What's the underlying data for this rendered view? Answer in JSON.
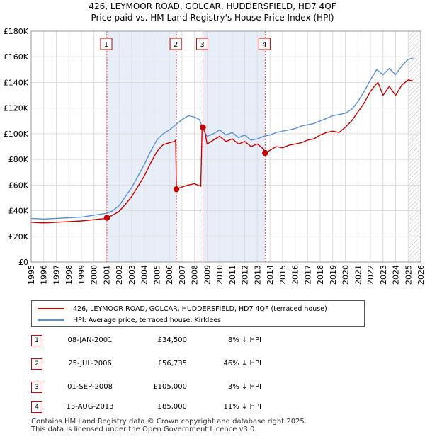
{
  "chart_data": {
    "type": "line",
    "title": "426, LEYMOOR ROAD, GOLCAR, HUDDERSFIELD, HD7 4QF",
    "subtitle": "Price paid vs. HM Land Registry's House Price Index (HPI)",
    "xlabel": "",
    "ylabel": "",
    "xlim": [
      1995,
      2026
    ],
    "ylim": [
      0,
      180000
    ],
    "x_ticks": [
      1995,
      1996,
      1997,
      1998,
      1999,
      2000,
      2001,
      2002,
      2003,
      2004,
      2005,
      2006,
      2007,
      2008,
      2009,
      2010,
      2011,
      2012,
      2013,
      2014,
      2015,
      2016,
      2017,
      2018,
      2019,
      2020,
      2021,
      2022,
      2023,
      2024,
      2025,
      2026
    ],
    "y_ticks": [
      0,
      20000,
      40000,
      60000,
      80000,
      100000,
      120000,
      140000,
      160000,
      180000
    ],
    "y_tick_labels": [
      "£0",
      "£20K",
      "£40K",
      "£60K",
      "£80K",
      "£100K",
      "£120K",
      "£140K",
      "£160K",
      "£180K"
    ],
    "grid": true,
    "colors": {
      "property": "#cc0000",
      "hpi": "#5b8fd9",
      "shade": "#e8eef8",
      "vline": "#e05050",
      "grid": "#dddddd"
    },
    "series": [
      {
        "name": "426, LEYMOOR ROAD, GOLCAR, HUDDERSFIELD, HD7 4QF (terraced house)",
        "color": "#cc0000",
        "x": [
          1995.0,
          1996.0,
          1997.0,
          1998.0,
          1999.0,
          2000.0,
          2001.0,
          2001.03,
          2001.5,
          2002.0,
          2002.5,
          2003.0,
          2003.5,
          2004.0,
          2004.5,
          2005.0,
          2005.5,
          2006.0,
          2006.4,
          2006.5,
          2006.56,
          2006.57,
          2007.0,
          2007.5,
          2008.0,
          2008.5,
          2008.6,
          2008.67,
          2008.8,
          2009.0,
          2009.5,
          2010.0,
          2010.5,
          2011.0,
          2011.5,
          2012.0,
          2012.5,
          2013.0,
          2013.5,
          2013.62,
          2014.0,
          2014.5,
          2015.0,
          2015.5,
          2016.0,
          2016.5,
          2017.0,
          2017.5,
          2018.0,
          2018.5,
          2019.0,
          2019.5,
          2020.0,
          2020.5,
          2021.0,
          2021.5,
          2022.0,
          2022.3,
          2022.6,
          2023.0,
          2023.5,
          2024.0,
          2024.5,
          2025.0,
          2025.4
        ],
        "values": [
          31000,
          30500,
          31000,
          31500,
          32000,
          33000,
          34000,
          34500,
          36500,
          39500,
          45000,
          51000,
          59000,
          67000,
          77000,
          86000,
          91500,
          93000,
          94000,
          95000,
          56735,
          57000,
          58500,
          60000,
          61000,
          59000,
          104000,
          105000,
          103000,
          92000,
          95000,
          98000,
          94000,
          96000,
          92000,
          94000,
          90000,
          92000,
          88000,
          85000,
          87000,
          90000,
          89000,
          91000,
          92000,
          93000,
          95000,
          96000,
          99000,
          101000,
          102000,
          101000,
          105000,
          110000,
          117000,
          124000,
          133000,
          137000,
          140000,
          130000,
          137000,
          130000,
          138000,
          142000,
          141000
        ]
      },
      {
        "name": "HPI: Average price, terraced house, Kirklees",
        "color": "#5b8fd9",
        "x": [
          1995.0,
          1996.0,
          1997.0,
          1998.0,
          1999.0,
          2000.0,
          2001.0,
          2001.5,
          2002.0,
          2002.5,
          2003.0,
          2003.5,
          2004.0,
          2004.5,
          2005.0,
          2005.5,
          2006.0,
          2006.5,
          2007.0,
          2007.5,
          2008.0,
          2008.4,
          2008.7,
          2009.0,
          2009.5,
          2010.0,
          2010.5,
          2011.0,
          2011.5,
          2012.0,
          2012.5,
          2013.0,
          2013.5,
          2014.0,
          2014.5,
          2015.0,
          2015.5,
          2016.0,
          2016.5,
          2017.0,
          2017.5,
          2018.0,
          2018.5,
          2019.0,
          2019.5,
          2020.0,
          2020.5,
          2021.0,
          2021.5,
          2022.0,
          2022.5,
          2023.0,
          2023.5,
          2024.0,
          2024.5,
          2025.0,
          2025.4
        ],
        "values": [
          34000,
          33500,
          34000,
          34500,
          35000,
          36500,
          38000,
          40000,
          44000,
          51000,
          58000,
          67000,
          76000,
          86000,
          95000,
          100000,
          103000,
          107000,
          111000,
          114000,
          113000,
          111000,
          103000,
          98000,
          100000,
          103000,
          99000,
          101000,
          97000,
          99000,
          95000,
          96000,
          98000,
          99000,
          101000,
          102000,
          103000,
          104000,
          106000,
          107000,
          108000,
          110000,
          112000,
          114000,
          115000,
          116000,
          119000,
          125000,
          133000,
          142000,
          150000,
          146000,
          151000,
          146000,
          153000,
          158000,
          159000
        ]
      }
    ],
    "markers": [
      {
        "label": "1",
        "x": 2001.03,
        "value": 34500
      },
      {
        "label": "2",
        "x": 2006.56,
        "value": 56735
      },
      {
        "label": "3",
        "x": 2008.67,
        "value": 105000
      },
      {
        "label": "4",
        "x": 2013.62,
        "value": 85000
      }
    ],
    "shaded_spans": [
      [
        2001.03,
        2006.56
      ],
      [
        2008.67,
        2013.62
      ]
    ],
    "hatched_from": 2025.0
  },
  "legend": {
    "property_label": "426, LEYMOOR ROAD, GOLCAR, HUDDERSFIELD, HD7 4QF (terraced house)",
    "hpi_label": "HPI: Average price, terraced house, Kirklees"
  },
  "transactions": [
    {
      "num": "1",
      "date": "08-JAN-2001",
      "price": "£34,500",
      "hpi": "8% ↓ HPI"
    },
    {
      "num": "2",
      "date": "25-JUL-2006",
      "price": "£56,735",
      "hpi": "46% ↓ HPI"
    },
    {
      "num": "3",
      "date": "01-SEP-2008",
      "price": "£105,000",
      "hpi": "3% ↓ HPI"
    },
    {
      "num": "4",
      "date": "13-AUG-2013",
      "price": "£85,000",
      "hpi": "11% ↓ HPI"
    }
  ],
  "footer": {
    "line1": "Contains HM Land Registry data © Crown copyright and database right 2025.",
    "line2": "This data is licensed under the Open Government Licence v3.0."
  }
}
